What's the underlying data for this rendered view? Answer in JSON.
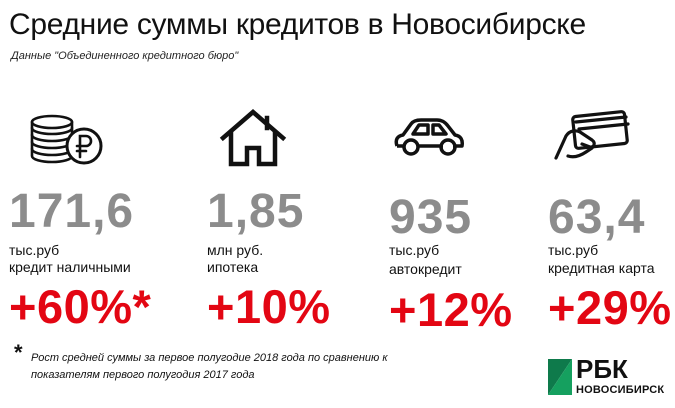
{
  "title": "Средние суммы кредитов в Новосибирске",
  "subtitle": "Данные \"Объединенного кредитного бюро\"",
  "stats": [
    {
      "icon": "coins-ruble-icon",
      "value": "171,6",
      "unit": "тыс.руб",
      "desc": "кредит наличными",
      "change": "+60%*"
    },
    {
      "icon": "house-icon",
      "value": "1,85",
      "unit": "млн руб.",
      "desc": "ипотека",
      "change": "+10%"
    },
    {
      "icon": "car-icon",
      "value": "935",
      "unit": "тыс.руб",
      "desc": "автокредит",
      "change": "+12%"
    },
    {
      "icon": "hand-card-icon",
      "value": "63,4",
      "unit": "тыс.руб",
      "desc": "кредитная карта",
      "change": "+29%"
    }
  ],
  "footnote": {
    "marker": "*",
    "text": "Рост средней суммы за первое полугодие 2018 года по сравнению к показателям первого полугодия 2017 года"
  },
  "logo": {
    "brand": "РБК",
    "city": "НОВОСИБИРСК"
  },
  "colors": {
    "value_gray": "#8c8c8c",
    "change_red": "#e30613",
    "text": "#111111"
  }
}
